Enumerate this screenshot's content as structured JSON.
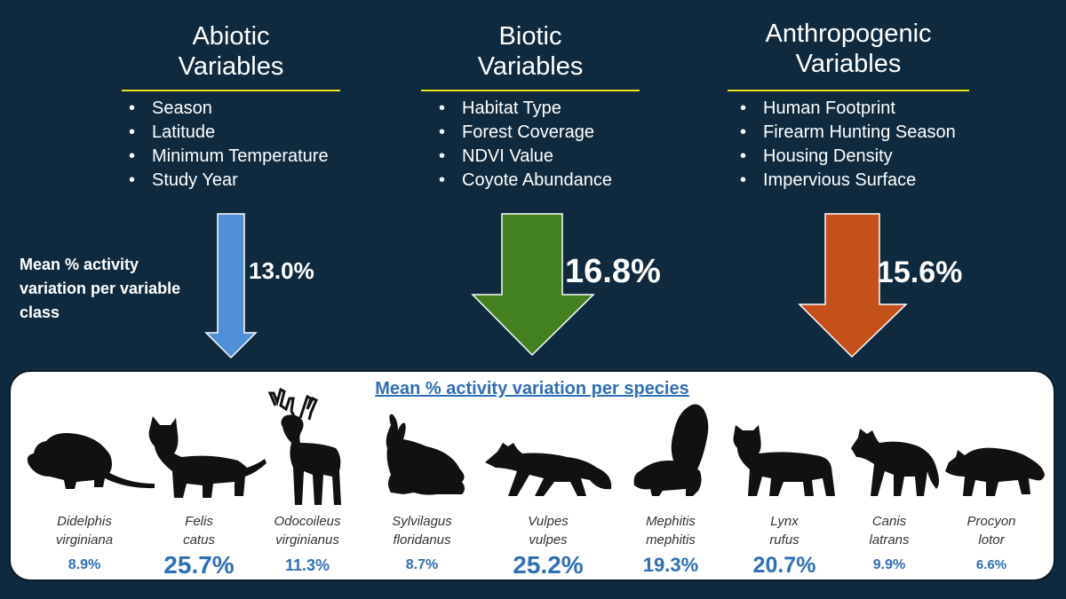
{
  "columns": [
    {
      "title_line1": "Abiotic",
      "title_line2": "Variables",
      "items": [
        "Season",
        "Latitude",
        "Minimum Temperature",
        "Study Year"
      ],
      "value": "13.0%",
      "arrow_color": "#4f8fd6"
    },
    {
      "title_line1": "Biotic",
      "title_line2": "Variables",
      "items": [
        "Habitat Type",
        "Forest Coverage",
        "NDVI Value",
        "Coyote Abundance"
      ],
      "value": "16.8%",
      "arrow_color": "#43801f"
    },
    {
      "title_line1": "Anthropogenic",
      "title_line2": "Variables",
      "items": [
        "Human Footprint",
        "Firearm Hunting Season",
        "Housing Density",
        "Impervious Surface"
      ],
      "value": "15.6%",
      "arrow_color": "#c4501a"
    }
  ],
  "side_label": "Mean % activity variation per variable class",
  "species_panel": {
    "title": "Mean % activity variation per species",
    "species": [
      {
        "genus": "Didelphis",
        "epithet": "virginiana",
        "value": "8.9%",
        "icon": "opossum-icon"
      },
      {
        "genus": "Felis",
        "epithet": "catus",
        "value": "25.7%",
        "icon": "cat-icon"
      },
      {
        "genus": "Odocoileus",
        "epithet": "virginianus",
        "value": "11.3%",
        "icon": "deer-icon"
      },
      {
        "genus": "Sylvilagus",
        "epithet": "floridanus",
        "value": "8.7%",
        "icon": "rabbit-icon"
      },
      {
        "genus": "Vulpes",
        "epithet": "vulpes",
        "value": "25.2%",
        "icon": "fox-icon"
      },
      {
        "genus": "Mephitis",
        "epithet": "mephitis",
        "value": "19.3%",
        "icon": "skunk-icon"
      },
      {
        "genus": "Lynx",
        "epithet": "rufus",
        "value": "20.7%",
        "icon": "bobcat-icon"
      },
      {
        "genus": "Canis",
        "epithet": "latrans",
        "value": "9.9%",
        "icon": "coyote-icon"
      },
      {
        "genus": "Procyon",
        "epithet": "lotor",
        "value": "6.6%",
        "icon": "raccoon-icon"
      }
    ]
  }
}
